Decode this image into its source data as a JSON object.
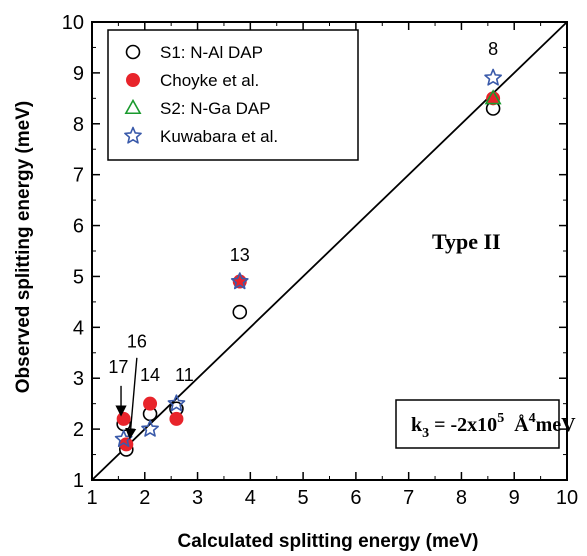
{
  "chart_data": {
    "type": "scatter",
    "xlabel": "Calculated splitting energy (meV)",
    "ylabel": "Observed splitting energy (meV)",
    "xlim": [
      1,
      10
    ],
    "ylim": [
      1,
      10
    ],
    "x_ticks": [
      "1",
      "2",
      "3",
      "4",
      "5",
      "6",
      "7",
      "8",
      "9",
      "10"
    ],
    "y_ticks": [
      "1",
      "2",
      "3",
      "4",
      "5",
      "6",
      "7",
      "8",
      "9",
      "10"
    ],
    "grid": false,
    "legend_position": "top-left",
    "series": [
      {
        "name": "S1: N-Al DAP",
        "marker": "open-circle",
        "color": "#000000",
        "points": [
          {
            "x": 1.6,
            "y": 2.1
          },
          {
            "x": 1.65,
            "y": 1.6
          },
          {
            "x": 2.1,
            "y": 2.3
          },
          {
            "x": 2.6,
            "y": 2.4
          },
          {
            "x": 3.8,
            "y": 4.3
          },
          {
            "x": 8.6,
            "y": 8.3
          }
        ]
      },
      {
        "name": "Choyke et al.",
        "marker": "filled-circle",
        "color": "#e8242b",
        "points": [
          {
            "x": 1.6,
            "y": 2.2
          },
          {
            "x": 1.65,
            "y": 1.7
          },
          {
            "x": 2.1,
            "y": 2.5
          },
          {
            "x": 2.6,
            "y": 2.2
          },
          {
            "x": 3.8,
            "y": 4.9
          },
          {
            "x": 8.6,
            "y": 8.5
          }
        ]
      },
      {
        "name": "S2: N-Ga DAP",
        "marker": "open-triangle",
        "color": "#1a9a2e",
        "points": [
          {
            "x": 8.6,
            "y": 8.5
          }
        ]
      },
      {
        "name": "Kuwabara et al.",
        "marker": "open-star",
        "color": "#3a5aaa",
        "points": [
          {
            "x": 1.6,
            "y": 1.8
          },
          {
            "x": 2.1,
            "y": 2.0
          },
          {
            "x": 2.6,
            "y": 2.5
          },
          {
            "x": 3.8,
            "y": 4.9
          },
          {
            "x": 8.6,
            "y": 8.9
          }
        ]
      }
    ],
    "reference_line": {
      "from": [
        1,
        1
      ],
      "to": [
        10,
        10
      ]
    },
    "point_labels": [
      {
        "text": "8",
        "x": 8.6,
        "y": 9.35
      },
      {
        "text": "13",
        "x": 3.8,
        "y": 5.3
      },
      {
        "text": "16",
        "x": 1.85,
        "y": 3.6
      },
      {
        "text": "17",
        "x": 1.5,
        "y": 3.1
      },
      {
        "text": "14",
        "x": 2.1,
        "y": 2.95
      },
      {
        "text": "11",
        "x": 2.75,
        "y": 2.95
      }
    ],
    "arrows": [
      {
        "from": [
          1.55,
          2.85
        ],
        "to": [
          1.55,
          2.3
        ]
      },
      {
        "from": [
          1.85,
          3.4
        ],
        "to": [
          1.72,
          1.85
        ]
      }
    ],
    "annotations": {
      "type_label": "Type II",
      "k3_main": "k",
      "k3_sub": "3",
      "k3_eq": " = -2x10",
      "k3_exp": "5",
      "k3_unit_a": "  Å",
      "k3_unit_exp": "4",
      "k3_unit_b": "meV"
    }
  }
}
